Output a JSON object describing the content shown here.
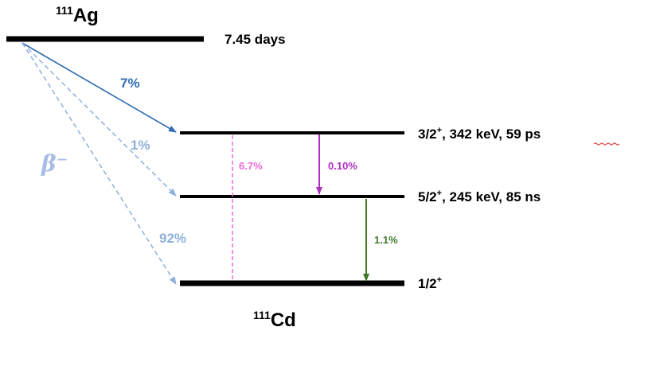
{
  "colors": {
    "level": "#000000",
    "beta_main": "#2f6cb3",
    "beta_faint": "#8fb0dc",
    "beta_symbol": "#a7bde6",
    "pink": "#f06ad8",
    "magenta": "#b02fc4",
    "green": "#3f7a2a",
    "underline": "#e23b3b"
  },
  "parent": {
    "mass_number": "111",
    "symbol": "Ag",
    "half_life": "7.45 days"
  },
  "daughter": {
    "mass_number": "111",
    "symbol": "Cd"
  },
  "beta_label": "β⁻",
  "levels": [
    {
      "spin": "3/2",
      "parity": "+",
      "rest_pre": ", 342 keV, 59 ",
      "rest_ul": "ps"
    },
    {
      "spin": "5/2",
      "parity": "+",
      "rest_pre": ", 245 keV, 85 ns",
      "rest_ul": ""
    },
    {
      "spin": "1/2",
      "parity": "+",
      "rest_pre": "",
      "rest_ul": ""
    }
  ],
  "beta_branches": [
    {
      "to_level": 0,
      "intensity": "7%",
      "style": "solid"
    },
    {
      "to_level": 1,
      "intensity": "1%",
      "style": "dashed"
    },
    {
      "to_level": 2,
      "intensity": "92%",
      "style": "dashed"
    }
  ],
  "gamma_transitions": [
    {
      "from_level": 0,
      "to_level": 2,
      "intensity": "6.7%",
      "color_key": "pink",
      "style": "dashed"
    },
    {
      "from_level": 0,
      "to_level": 1,
      "intensity": "0.10%",
      "color_key": "magenta",
      "style": "solid"
    },
    {
      "from_level": 1,
      "to_level": 2,
      "intensity": "1.1%",
      "color_key": "green",
      "style": "solid"
    }
  ]
}
